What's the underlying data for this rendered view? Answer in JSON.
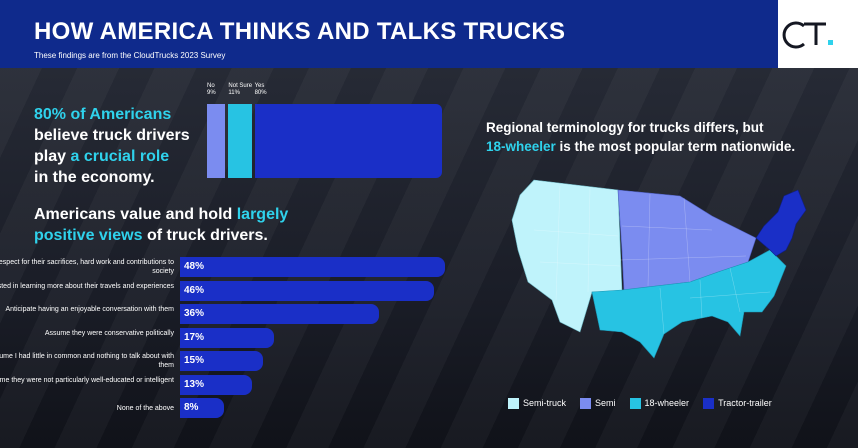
{
  "header": {
    "title": "HOW AMERICA THINKS AND TALKS TRUCKS",
    "subtitle": "These findings are from the CloudTrucks 2023 Survey",
    "logo_text": "CT."
  },
  "finding1": {
    "highlight": "80% of Americans",
    "rest1": "believe truck drivers",
    "rest2a": "play ",
    "rest2b": "a crucial role",
    "rest3": "in the economy."
  },
  "finding2": {
    "line1a": "Americans value and hold ",
    "line1b": "largely",
    "line2a": "positive views",
    "line2b": " of truck drivers."
  },
  "finding3": {
    "line1": "Regional terminology for trucks differs, but",
    "line2a": "18-wheeler",
    "line2b": " is the most popular term nationwide."
  },
  "colors": {
    "semi_truck": "#bff3fb",
    "semi": "#7b8cf0",
    "eighteen_wheeler": "#27c3e3",
    "tractor_trailer": "#1a2fc7",
    "header_bg": "#0f2a8c",
    "accent": "#2fd2ec"
  },
  "chart_data": [
    {
      "type": "bar",
      "orientation": "horizontal-stacked",
      "categories": [
        "No",
        "Not Sure",
        "Yes"
      ],
      "values": [
        9,
        11,
        80
      ],
      "tick_labels": [
        "9%",
        "11%",
        "80%"
      ],
      "colors": [
        "#7b8cf0",
        "#27c3e3",
        "#1a2fc7"
      ]
    },
    {
      "type": "bar",
      "orientation": "horizontal",
      "categories": [
        "Respect for their sacrifices, hard work and contributions to society",
        "Interested in learning more about their travels and experiences",
        "Anticipate having an enjoyable conversation with them",
        "Assume they were conservative politically",
        "Assume I had little in common and nothing to talk about with them",
        "Assume they were not particularly well-educated or intelligent",
        "None of the above"
      ],
      "values": [
        48,
        46,
        36,
        17,
        15,
        13,
        8
      ],
      "value_labels": [
        "48%",
        "46%",
        "36%",
        "17%",
        "15%",
        "13%",
        "8%"
      ],
      "xlim": [
        0,
        48
      ]
    }
  ],
  "map": {
    "legend": [
      {
        "label": "Semi-truck",
        "color": "#bff3fb"
      },
      {
        "label": "Semi",
        "color": "#7b8cf0"
      },
      {
        "label": "18-wheeler",
        "color": "#27c3e3"
      },
      {
        "label": "Tractor-trailer",
        "color": "#1a2fc7"
      }
    ]
  }
}
